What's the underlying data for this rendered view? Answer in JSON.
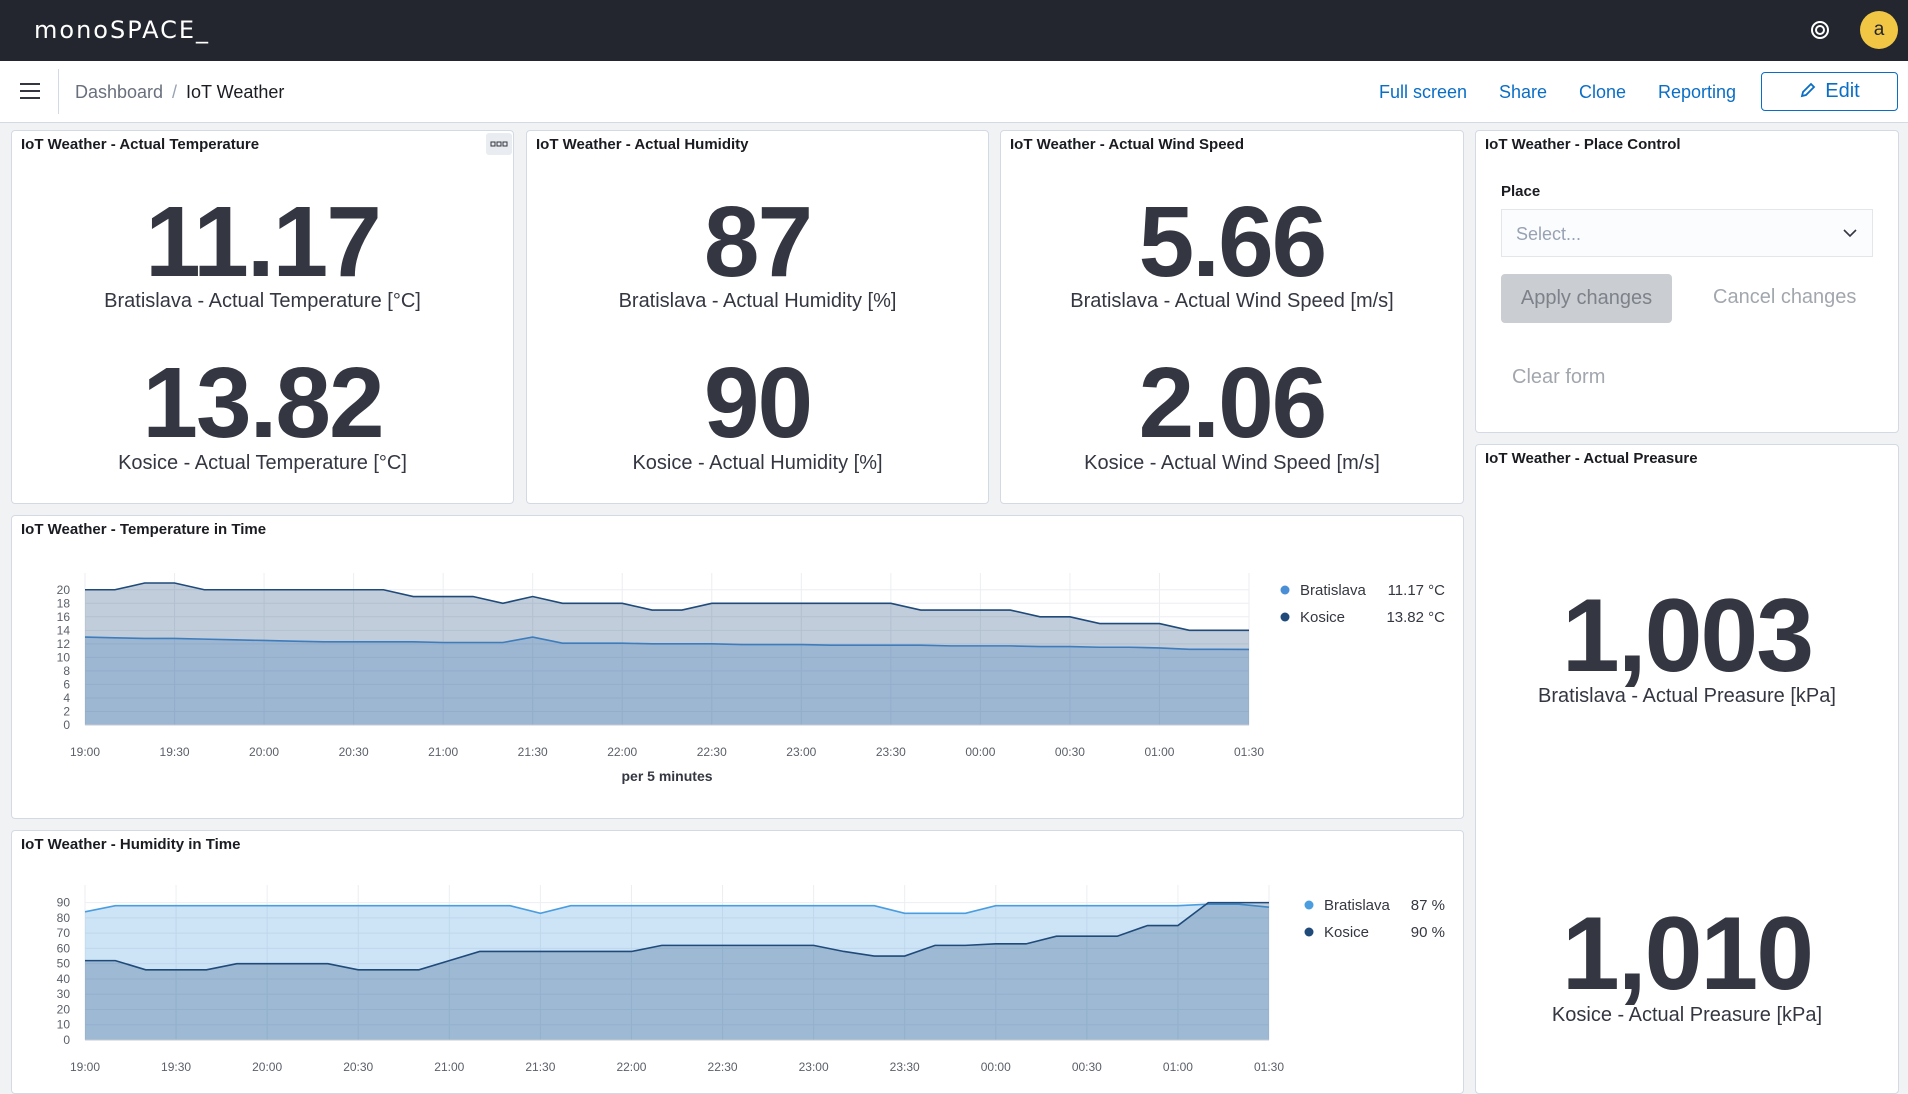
{
  "header": {
    "logo": "monoSPACE_",
    "avatar": "a"
  },
  "toolbar": {
    "breadcrumb": [
      "Dashboard",
      "IoT Weather"
    ],
    "separator": "/",
    "actions": [
      "Full screen",
      "Share",
      "Clone",
      "Reporting"
    ],
    "edit": "Edit"
  },
  "metrics": [
    {
      "title": "IoT Weather - Actual Temperature",
      "items": [
        {
          "value": 11.17,
          "label": "Bratislava - Actual Temperature [°C]"
        },
        {
          "value": 13.82,
          "label": "Kosice - Actual Temperature [°C]"
        }
      ]
    },
    {
      "title": "IoT Weather - Actual Humidity",
      "items": [
        {
          "value": 87,
          "label": "Bratislava - Actual Humidity [%]"
        },
        {
          "value": 90,
          "label": "Kosice - Actual Humidity [%]"
        }
      ]
    },
    {
      "title": "IoT Weather - Actual Wind Speed",
      "items": [
        {
          "value": 5.66,
          "label": "Bratislava - Actual Wind Speed [m/s]"
        },
        {
          "value": 2.06,
          "label": "Kosice - Actual Wind Speed [m/s]"
        }
      ]
    }
  ],
  "place_control": {
    "title": "IoT Weather - Place Control",
    "field_label": "Place",
    "placeholder": "Select...",
    "apply": "Apply changes",
    "cancel": "Cancel changes",
    "clear": "Clear form"
  },
  "pressure": {
    "title": "IoT Weather - Actual Preasure",
    "items": [
      {
        "value": 1003,
        "value_label": "1,003",
        "label": "Bratislava - Actual Preasure [kPa]"
      },
      {
        "value": 1010,
        "value_label": "1,010",
        "label": "Kosice - Actual Preasure [kPa]"
      }
    ]
  },
  "charts": [
    {
      "type": "area",
      "title": "IoT Weather - Temperature in Time",
      "x_label": "per 5 minutes",
      "categories": [
        "19:00",
        null,
        null,
        "19:30",
        null,
        null,
        "20:00",
        null,
        null,
        "20:30",
        null,
        null,
        "21:00",
        null,
        null,
        "21:30",
        null,
        null,
        "22:00",
        null,
        null,
        "22:30",
        null,
        null,
        "23:00",
        null,
        null,
        "23:30",
        null,
        null,
        "00:00",
        null,
        null,
        "00:30",
        null,
        null,
        "01:00",
        null,
        null,
        "01:30"
      ],
      "ylim": [
        0,
        21
      ],
      "yticks": [
        0,
        2,
        4,
        6,
        8,
        10,
        12,
        14,
        16,
        18,
        20
      ],
      "grid": true,
      "series": [
        {
          "name": "Bratislava",
          "color": "#4a8fd6",
          "legend_value": "11.17 °C",
          "values": [
            13,
            12.9,
            12.8,
            12.8,
            12.7,
            12.6,
            12.5,
            12.4,
            12.3,
            12.3,
            12.3,
            12.3,
            12.2,
            12.2,
            12.2,
            13,
            12.1,
            12.1,
            12.1,
            12,
            12,
            12,
            11.9,
            11.9,
            11.9,
            11.8,
            11.8,
            11.8,
            11.8,
            11.7,
            11.7,
            11.7,
            11.6,
            11.6,
            11.5,
            11.5,
            11.4,
            11.2,
            11.2,
            11.17
          ]
        },
        {
          "name": "Kosice",
          "color": "#1f4a7a",
          "legend_value": "13.82 °C",
          "values": [
            20,
            20,
            21,
            21,
            20,
            20,
            20,
            20,
            20,
            20,
            20,
            19,
            19,
            19,
            18,
            19,
            18,
            18,
            18,
            17,
            17,
            18,
            18,
            18,
            18,
            18,
            18,
            18,
            17,
            17,
            17,
            17,
            16,
            16,
            15,
            15,
            15,
            14,
            14,
            14
          ]
        }
      ]
    },
    {
      "type": "area",
      "title": "IoT Weather - Humidity in Time",
      "categories": [
        "19:00",
        null,
        null,
        "19:30",
        null,
        null,
        "20:00",
        null,
        null,
        "20:30",
        null,
        null,
        "21:00",
        null,
        null,
        "21:30",
        null,
        null,
        "22:00",
        null,
        null,
        "22:30",
        null,
        null,
        "23:00",
        null,
        null,
        "23:30",
        null,
        null,
        "00:00",
        null,
        null,
        "00:30",
        null,
        null,
        "01:00",
        null,
        null,
        "01:30"
      ],
      "ylim": [
        0,
        95
      ],
      "yticks": [
        0,
        10,
        20,
        30,
        40,
        50,
        60,
        70,
        80,
        90
      ],
      "grid": true,
      "series": [
        {
          "name": "Bratislava",
          "color": "#4a9ee0",
          "legend_value": "87 %",
          "values": [
            84,
            88,
            88,
            88,
            88,
            88,
            88,
            88,
            88,
            88,
            88,
            88,
            88,
            88,
            88,
            83,
            88,
            88,
            88,
            88,
            88,
            88,
            88,
            88,
            88,
            88,
            88,
            83,
            83,
            83,
            88,
            88,
            88,
            88,
            88,
            88,
            88,
            89,
            89,
            87
          ]
        },
        {
          "name": "Kosice",
          "color": "#1f4a7a",
          "legend_value": "90 %",
          "values": [
            52,
            52,
            46,
            46,
            46,
            50,
            50,
            50,
            50,
            46,
            46,
            46,
            52,
            58,
            58,
            58,
            58,
            58,
            58,
            62,
            62,
            62,
            62,
            62,
            62,
            58,
            55,
            55,
            62,
            62,
            63,
            63,
            68,
            68,
            68,
            75,
            75,
            90,
            90,
            90
          ]
        }
      ]
    }
  ]
}
